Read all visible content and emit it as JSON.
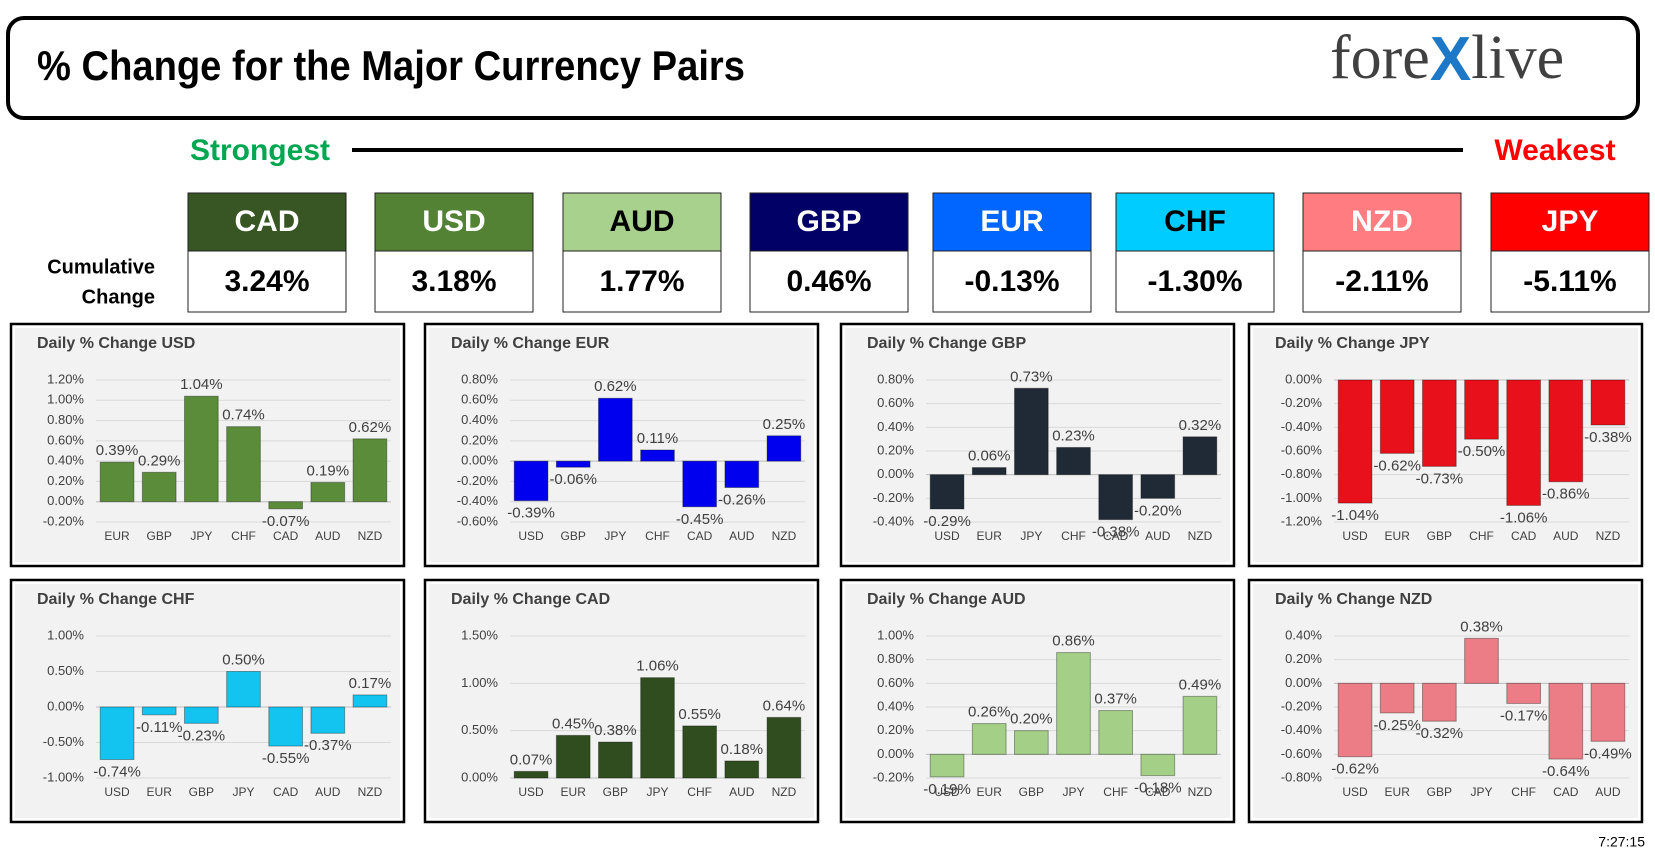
{
  "header": {
    "title": "% Change for the Major Currency Pairs",
    "logo": {
      "left": "fore",
      "mark": "X",
      "right": "live"
    }
  },
  "ranking": {
    "strongest": "Strongest",
    "weakest": "Weakest",
    "row_label": [
      "Cumulative",
      "Change"
    ],
    "currencies": [
      {
        "name": "CAD",
        "change": "3.24%",
        "color": "#375623",
        "text_color": "#ffffff"
      },
      {
        "name": "USD",
        "change": "3.18%",
        "color": "#548235",
        "text_color": "#ffffff"
      },
      {
        "name": "AUD",
        "change": "1.77%",
        "color": "#a9d18e",
        "text_color": "#000000"
      },
      {
        "name": "GBP",
        "change": "0.46%",
        "color": "#000066",
        "text_color": "#ffffff"
      },
      {
        "name": "EUR",
        "change": "-0.13%",
        "color": "#0066ff",
        "text_color": "#ffffff"
      },
      {
        "name": "CHF",
        "change": "-1.30%",
        "color": "#00ccff",
        "text_color": "#000000"
      },
      {
        "name": "NZD",
        "change": "-2.11%",
        "color": "#ff7c80",
        "text_color": "#ffffff"
      },
      {
        "name": "JPY",
        "change": "-5.11%",
        "color": "#ff0000",
        "text_color": "#ffffff"
      }
    ]
  },
  "chart_data": [
    {
      "type": "bar",
      "title": "Daily % Change USD",
      "categories": [
        "EUR",
        "GBP",
        "JPY",
        "CHF",
        "CAD",
        "AUD",
        "NZD"
      ],
      "values": [
        0.39,
        0.29,
        1.04,
        0.74,
        -0.07,
        0.19,
        0.62
      ],
      "value_labels": [
        "0.39%",
        "0.29%",
        "1.04%",
        "0.74%",
        "-0.07%",
        "0.19%",
        "0.62%"
      ],
      "color": "#5b8c3a",
      "ylim": [
        -0.2,
        1.2
      ],
      "grid": true,
      "yticks": [
        {
          "value": -0.2,
          "label": "-0.20%"
        },
        {
          "value": 0,
          "label": "0.00%"
        },
        {
          "value": 0.2,
          "label": "0.20%"
        },
        {
          "value": 0.4,
          "label": "0.40%"
        },
        {
          "value": 0.6,
          "label": "0.60%"
        },
        {
          "value": 0.8,
          "label": "0.80%"
        },
        {
          "value": 1.0,
          "label": "1.00%"
        },
        {
          "value": 1.2,
          "label": "1.20%"
        }
      ]
    },
    {
      "type": "bar",
      "title": "Daily % Change EUR",
      "categories": [
        "USD",
        "GBP",
        "JPY",
        "CHF",
        "CAD",
        "AUD",
        "NZD"
      ],
      "values": [
        -0.39,
        -0.06,
        0.62,
        0.11,
        -0.45,
        -0.26,
        0.25
      ],
      "value_labels": [
        "-0.39%",
        "-0.06%",
        "0.62%",
        "0.11%",
        "-0.45%",
        "-0.26%",
        "0.25%"
      ],
      "color": "#0000ee",
      "ylim": [
        -0.6,
        0.8
      ],
      "grid": true,
      "yticks": [
        {
          "value": -0.6,
          "label": "-0.60%"
        },
        {
          "value": -0.4,
          "label": "-0.40%"
        },
        {
          "value": -0.2,
          "label": "-0.20%"
        },
        {
          "value": 0,
          "label": "0.00%"
        },
        {
          "value": 0.2,
          "label": "0.20%"
        },
        {
          "value": 0.4,
          "label": "0.40%"
        },
        {
          "value": 0.6,
          "label": "0.60%"
        },
        {
          "value": 0.8,
          "label": "0.80%"
        }
      ]
    },
    {
      "type": "bar",
      "title": "Daily % Change GBP",
      "categories": [
        "USD",
        "EUR",
        "JPY",
        "CHF",
        "CAD",
        "AUD",
        "NZD"
      ],
      "values": [
        -0.29,
        0.06,
        0.73,
        0.23,
        -0.38,
        -0.2,
        0.32
      ],
      "value_labels": [
        "-0.29%",
        "0.06%",
        "0.73%",
        "0.23%",
        "-0.38%",
        "-0.20%",
        "0.32%"
      ],
      "color": "#1f2a36",
      "ylim": [
        -0.4,
        0.8
      ],
      "grid": true,
      "yticks": [
        {
          "value": -0.4,
          "label": "-0.40%"
        },
        {
          "value": -0.2,
          "label": "-0.20%"
        },
        {
          "value": 0,
          "label": "0.00%"
        },
        {
          "value": 0.2,
          "label": "0.20%"
        },
        {
          "value": 0.4,
          "label": "0.40%"
        },
        {
          "value": 0.6,
          "label": "0.60%"
        },
        {
          "value": 0.8,
          "label": "0.80%"
        }
      ]
    },
    {
      "type": "bar",
      "title": "Daily % Change JPY",
      "categories": [
        "USD",
        "EUR",
        "GBP",
        "CHF",
        "CAD",
        "AUD",
        "NZD"
      ],
      "values": [
        -1.04,
        -0.62,
        -0.73,
        -0.5,
        -1.06,
        -0.86,
        -0.38
      ],
      "value_labels": [
        "-1.04%",
        "-0.62%",
        "-0.73%",
        "-0.50%",
        "-1.06%",
        "-0.86%",
        "-0.38%"
      ],
      "color": "#e8101a",
      "ylim": [
        -1.2,
        0
      ],
      "grid": true,
      "yticks": [
        {
          "value": -1.2,
          "label": "-1.20%"
        },
        {
          "value": -1.0,
          "label": "-1.00%"
        },
        {
          "value": -0.8,
          "label": "-0.80%"
        },
        {
          "value": -0.6,
          "label": "-0.60%"
        },
        {
          "value": -0.4,
          "label": "-0.40%"
        },
        {
          "value": -0.2,
          "label": "-0.20%"
        },
        {
          "value": 0,
          "label": "0.00%"
        }
      ]
    },
    {
      "type": "bar",
      "title": "Daily % Change CHF",
      "categories": [
        "USD",
        "EUR",
        "GBP",
        "JPY",
        "CAD",
        "AUD",
        "NZD"
      ],
      "values": [
        -0.74,
        -0.11,
        -0.23,
        0.5,
        -0.55,
        -0.37,
        0.17
      ],
      "value_labels": [
        "-0.74%",
        "-0.11%",
        "-0.23%",
        "0.50%",
        "-0.55%",
        "-0.37%",
        "0.17%"
      ],
      "color": "#12c4ef",
      "ylim": [
        -1.0,
        1.0
      ],
      "grid": true,
      "yticks": [
        {
          "value": -1.0,
          "label": "-1.00%"
        },
        {
          "value": -0.5,
          "label": "-0.50%"
        },
        {
          "value": 0,
          "label": "0.00%"
        },
        {
          "value": 0.5,
          "label": "0.50%"
        },
        {
          "value": 1.0,
          "label": "1.00%"
        }
      ]
    },
    {
      "type": "bar",
      "title": "Daily % Change CAD",
      "categories": [
        "USD",
        "EUR",
        "GBP",
        "JPY",
        "CHF",
        "AUD",
        "NZD"
      ],
      "values": [
        0.07,
        0.45,
        0.38,
        1.06,
        0.55,
        0.18,
        0.64
      ],
      "value_labels": [
        "0.07%",
        "0.45%",
        "0.38%",
        "1.06%",
        "0.55%",
        "0.18%",
        "0.64%"
      ],
      "color": "#2f4d1f",
      "ylim": [
        0,
        1.5
      ],
      "grid": true,
      "yticks": [
        {
          "value": 0,
          "label": "0.00%"
        },
        {
          "value": 0.5,
          "label": "0.50%"
        },
        {
          "value": 1.0,
          "label": "1.00%"
        },
        {
          "value": 1.5,
          "label": "1.50%"
        }
      ]
    },
    {
      "type": "bar",
      "title": "Daily % Change AUD",
      "categories": [
        "USD",
        "EUR",
        "GBP",
        "JPY",
        "CHF",
        "CAD",
        "NZD"
      ],
      "values": [
        -0.19,
        0.26,
        0.2,
        0.86,
        0.37,
        -0.18,
        0.49
      ],
      "value_labels": [
        "-0.19%",
        "0.26%",
        "0.20%",
        "0.86%",
        "0.37%",
        "-0.18%",
        "0.49%"
      ],
      "color": "#a3cf86",
      "ylim": [
        -0.2,
        1.0
      ],
      "grid": true,
      "yticks": [
        {
          "value": -0.2,
          "label": "-0.20%"
        },
        {
          "value": 0,
          "label": "0.00%"
        },
        {
          "value": 0.2,
          "label": "0.20%"
        },
        {
          "value": 0.4,
          "label": "0.40%"
        },
        {
          "value": 0.6,
          "label": "0.60%"
        },
        {
          "value": 0.8,
          "label": "0.80%"
        },
        {
          "value": 1.0,
          "label": "1.00%"
        }
      ]
    },
    {
      "type": "bar",
      "title": "Daily % Change NZD",
      "categories": [
        "USD",
        "EUR",
        "GBP",
        "JPY",
        "CHF",
        "CAD",
        "AUD"
      ],
      "values": [
        -0.62,
        -0.25,
        -0.32,
        0.38,
        -0.17,
        -0.64,
        -0.49
      ],
      "value_labels": [
        "-0.62%",
        "-0.25%",
        "-0.32%",
        "0.38%",
        "-0.17%",
        "-0.64%",
        "-0.49%"
      ],
      "color": "#ec7d86",
      "ylim": [
        -0.8,
        0.4
      ],
      "grid": true,
      "yticks": [
        {
          "value": -0.8,
          "label": "-0.80%"
        },
        {
          "value": -0.6,
          "label": "-0.60%"
        },
        {
          "value": -0.4,
          "label": "-0.40%"
        },
        {
          "value": -0.2,
          "label": "-0.20%"
        },
        {
          "value": 0,
          "label": "0.00%"
        },
        {
          "value": 0.2,
          "label": "0.20%"
        },
        {
          "value": 0.4,
          "label": "0.40%"
        }
      ]
    }
  ],
  "footer": {
    "time": "7:27:15"
  }
}
